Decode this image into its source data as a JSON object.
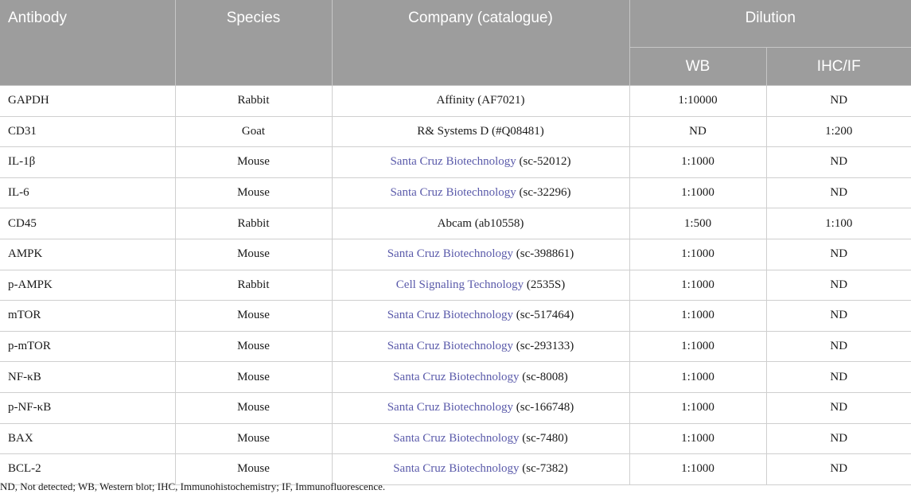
{
  "headers": {
    "antibody": "Antibody",
    "species": "Species",
    "company": "Company (catalogue)",
    "dilution": "Dilution",
    "wb": "WB",
    "ihc_if": "IHC/IF"
  },
  "rows": [
    {
      "antibody": "GAPDH",
      "species": "Rabbit",
      "company_link": "",
      "company": "Affinity (AF7021)",
      "wb": "1:10000",
      "ihc_if": "ND"
    },
    {
      "antibody": "CD31",
      "species": "Goat",
      "company_link": "",
      "company": "R& Systems D (#Q08481)",
      "wb": "ND",
      "ihc_if": "1:200"
    },
    {
      "antibody": "IL-1β",
      "species": "Mouse",
      "company_link": "Santa Cruz Biotechnology",
      "company": " (sc-52012)",
      "wb": "1:1000",
      "ihc_if": "ND"
    },
    {
      "antibody": "IL-6",
      "species": "Mouse",
      "company_link": "Santa Cruz Biotechnology",
      "company": " (sc-32296)",
      "wb": "1:1000",
      "ihc_if": "ND"
    },
    {
      "antibody": "CD45",
      "species": "Rabbit",
      "company_link": "",
      "company": "Abcam (ab10558)",
      "wb": "1:500",
      "ihc_if": "1:100"
    },
    {
      "antibody": "AMPK",
      "species": "Mouse",
      "company_link": "Santa Cruz Biotechnology",
      "company": " (sc-398861)",
      "wb": "1:1000",
      "ihc_if": "ND"
    },
    {
      "antibody": "p-AMPK",
      "species": "Rabbit",
      "company_link": "Cell Signaling Technology",
      "company": " (2535S)",
      "wb": "1:1000",
      "ihc_if": "ND"
    },
    {
      "antibody": "mTOR",
      "species": "Mouse",
      "company_link": "Santa Cruz Biotechnology",
      "company": " (sc-517464)",
      "wb": "1:1000",
      "ihc_if": "ND"
    },
    {
      "antibody": "p-mTOR",
      "species": "Mouse",
      "company_link": "Santa Cruz Biotechnology",
      "company": " (sc-293133)",
      "wb": "1:1000",
      "ihc_if": "ND"
    },
    {
      "antibody": "NF-κB",
      "species": "Mouse",
      "company_link": "Santa Cruz Biotechnology",
      "company": " (sc-8008)",
      "wb": "1:1000",
      "ihc_if": "ND"
    },
    {
      "antibody": "p-NF-κB",
      "species": "Mouse",
      "company_link": "Santa Cruz Biotechnology",
      "company": " (sc-166748)",
      "wb": "1:1000",
      "ihc_if": "ND"
    },
    {
      "antibody": "BAX",
      "species": "Mouse",
      "company_link": "Santa Cruz Biotechnology",
      "company": " (sc-7480)",
      "wb": "1:1000",
      "ihc_if": "ND"
    },
    {
      "antibody": "BCL-2",
      "species": "Mouse",
      "company_link": "Santa Cruz Biotechnology",
      "company": " (sc-7382)",
      "wb": "1:1000",
      "ihc_if": "ND"
    }
  ],
  "footnote": "ND, Not detected; WB, Western blot; IHC, Immunohistochemistry; IF, Immunofluorescence.",
  "colors": {
    "header_bg": "#9d9d9d",
    "link": "#5a5aaa"
  }
}
